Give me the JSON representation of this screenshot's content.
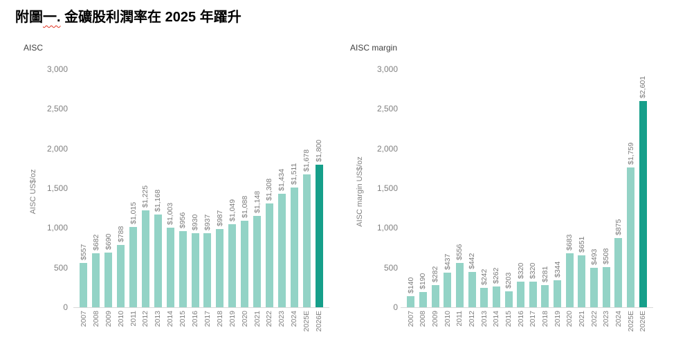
{
  "page": {
    "title_prefix": "附圖",
    "title_underlined": "一.",
    "title_rest": " 金礦股利潤率在 2025 年躍升"
  },
  "colors": {
    "bar": "#93d3c6",
    "bar_highlight": "#169f8a",
    "baseline": "#d9d9d9",
    "axis_text": "#808080",
    "value_label": "#7a7a7a",
    "chart_title_text": "#404040",
    "figure_title_text": "#000000",
    "spellcheck_squiggle": "#e0301e"
  },
  "chart_data": [
    {
      "type": "bar",
      "title": "AISC",
      "ylabel": "AISC US$/oz",
      "xlabel": "",
      "ylim": [
        0,
        3000
      ],
      "ytick_step": 500,
      "yticks": [
        "3,000",
        "2,500",
        "2,000",
        "1,500",
        "1,000",
        "500",
        "0"
      ],
      "grid": false,
      "legend": "none",
      "categories": [
        "2007",
        "2008",
        "2009",
        "2010",
        "2011",
        "2012",
        "2013",
        "2014",
        "2015",
        "2016",
        "2017",
        "2018",
        "2019",
        "2020",
        "2021",
        "2022",
        "2023",
        "2024",
        "2025E",
        "2026E"
      ],
      "values": [
        557,
        682,
        690,
        788,
        1015,
        1225,
        1168,
        1003,
        956,
        930,
        937,
        987,
        1049,
        1088,
        1148,
        1308,
        1434,
        1511,
        1678,
        1800
      ],
      "labels": [
        "$557",
        "$682",
        "$690",
        "$788",
        "$1,015",
        "$1,225",
        "$1,168",
        "$1,003",
        "$956",
        "$930",
        "$937",
        "$987",
        "$1,049",
        "$1,088",
        "$1,148",
        "$1,308",
        "$1,434",
        "$1,511",
        "$1,678",
        "$1,800"
      ],
      "highlight_index": 19,
      "highlight_category": "2026E"
    },
    {
      "type": "bar",
      "title": "AISC margin",
      "ylabel": "AISC margin US$/oz",
      "xlabel": "",
      "ylim": [
        0,
        3000
      ],
      "ytick_step": 500,
      "yticks": [
        "3,000",
        "2,500",
        "2,000",
        "1,500",
        "1,000",
        "500",
        "0"
      ],
      "grid": false,
      "legend": "none",
      "categories": [
        "2007",
        "2008",
        "2009",
        "2010",
        "2011",
        "2012",
        "2013",
        "2014",
        "2015",
        "2016",
        "2017",
        "2018",
        "2019",
        "2020",
        "2021",
        "2022",
        "2023",
        "2024",
        "2025E",
        "2026E"
      ],
      "values": [
        140,
        190,
        282,
        437,
        556,
        442,
        242,
        262,
        203,
        320,
        320,
        281,
        344,
        683,
        651,
        493,
        508,
        875,
        1759,
        2601
      ],
      "labels": [
        "$140",
        "$190",
        "$282",
        "$437",
        "$556",
        "$442",
        "$242",
        "$262",
        "$203",
        "$320",
        "$320",
        "$281",
        "$344",
        "$683",
        "$651",
        "$493",
        "$508",
        "$875",
        "$1,759",
        "$2,601"
      ],
      "highlight_index": 19,
      "highlight_category": "2026E"
    }
  ]
}
